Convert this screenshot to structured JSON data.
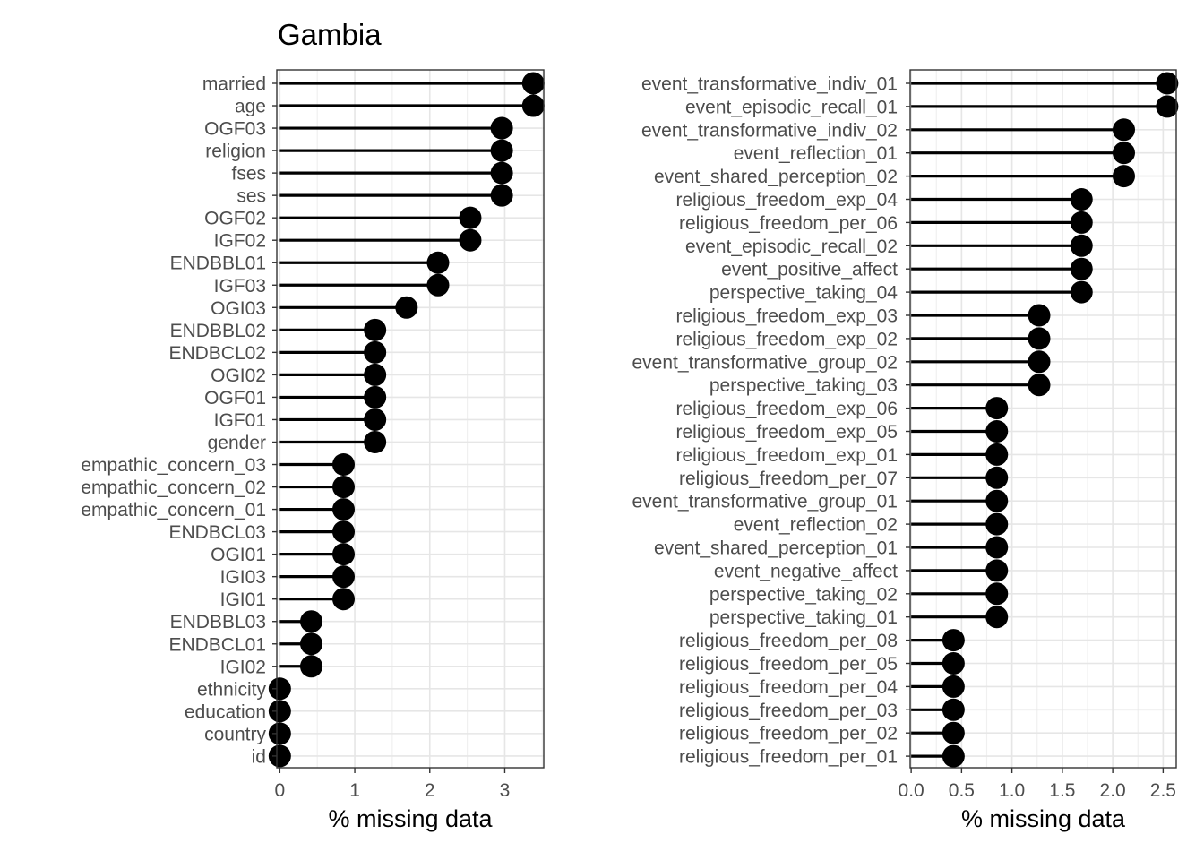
{
  "title": "Gambia",
  "chart_data": [
    {
      "type": "lollipop",
      "title": "Gambia",
      "xlabel": "% missing data",
      "ylabel": "",
      "xlim": [
        0,
        3.5
      ],
      "x_ticks": [
        0,
        1,
        2,
        3
      ],
      "x_tick_labels": [
        "0",
        "1",
        "2",
        "3"
      ],
      "grid": true,
      "categories": [
        "married",
        "age",
        "OGF03",
        "religion",
        "fses",
        "ses",
        "OGF02",
        "IGF02",
        "ENDBBL01",
        "IGF03",
        "OGI03",
        "ENDBBL02",
        "ENDBCL02",
        "OGI02",
        "OGF01",
        "IGF01",
        "gender",
        "empathic_concern_03",
        "empathic_concern_02",
        "empathic_concern_01",
        "ENDBCL03",
        "OGI01",
        "IGI03",
        "IGI01",
        "ENDBBL03",
        "ENDBCL01",
        "IGI02",
        "ethnicity",
        "education",
        "country",
        "id"
      ],
      "values": [
        3.38,
        3.38,
        2.96,
        2.96,
        2.96,
        2.96,
        2.54,
        2.54,
        2.11,
        2.11,
        1.69,
        1.27,
        1.27,
        1.27,
        1.27,
        1.27,
        1.27,
        0.85,
        0.85,
        0.85,
        0.85,
        0.85,
        0.85,
        0.85,
        0.42,
        0.42,
        0.42,
        0.0,
        0.0,
        0.0,
        0.0
      ]
    },
    {
      "type": "lollipop",
      "title": "",
      "xlabel": "% missing data",
      "ylabel": "",
      "xlim": [
        0,
        2.6
      ],
      "x_ticks": [
        0,
        0.5,
        1,
        1.5,
        2,
        2.5
      ],
      "x_tick_labels": [
        "0.0",
        "0.5",
        "1.0",
        "1.5",
        "2.0",
        "2.5"
      ],
      "grid": true,
      "categories": [
        "event_transformative_indiv_01",
        "event_episodic_recall_01",
        "event_transformative_indiv_02",
        "event_reflection_01",
        "event_shared_perception_02",
        "religious_freedom_exp_04",
        "religious_freedom_per_06",
        "event_episodic_recall_02",
        "event_positive_affect",
        "perspective_taking_04",
        "religious_freedom_exp_03",
        "religious_freedom_exp_02",
        "event_transformative_group_02",
        "perspective_taking_03",
        "religious_freedom_exp_06",
        "religious_freedom_exp_05",
        "religious_freedom_exp_01",
        "religious_freedom_per_07",
        "event_transformative_group_01",
        "event_reflection_02",
        "event_shared_perception_01",
        "event_negative_affect",
        "perspective_taking_02",
        "perspective_taking_01",
        "religious_freedom_per_08",
        "religious_freedom_per_05",
        "religious_freedom_per_04",
        "religious_freedom_per_03",
        "religious_freedom_per_02",
        "religious_freedom_per_01"
      ],
      "values": [
        2.54,
        2.54,
        2.11,
        2.11,
        2.11,
        1.69,
        1.69,
        1.69,
        1.69,
        1.69,
        1.27,
        1.27,
        1.27,
        1.27,
        0.85,
        0.85,
        0.85,
        0.85,
        0.85,
        0.85,
        0.85,
        0.85,
        0.85,
        0.85,
        0.42,
        0.42,
        0.42,
        0.42,
        0.42,
        0.42
      ]
    }
  ]
}
